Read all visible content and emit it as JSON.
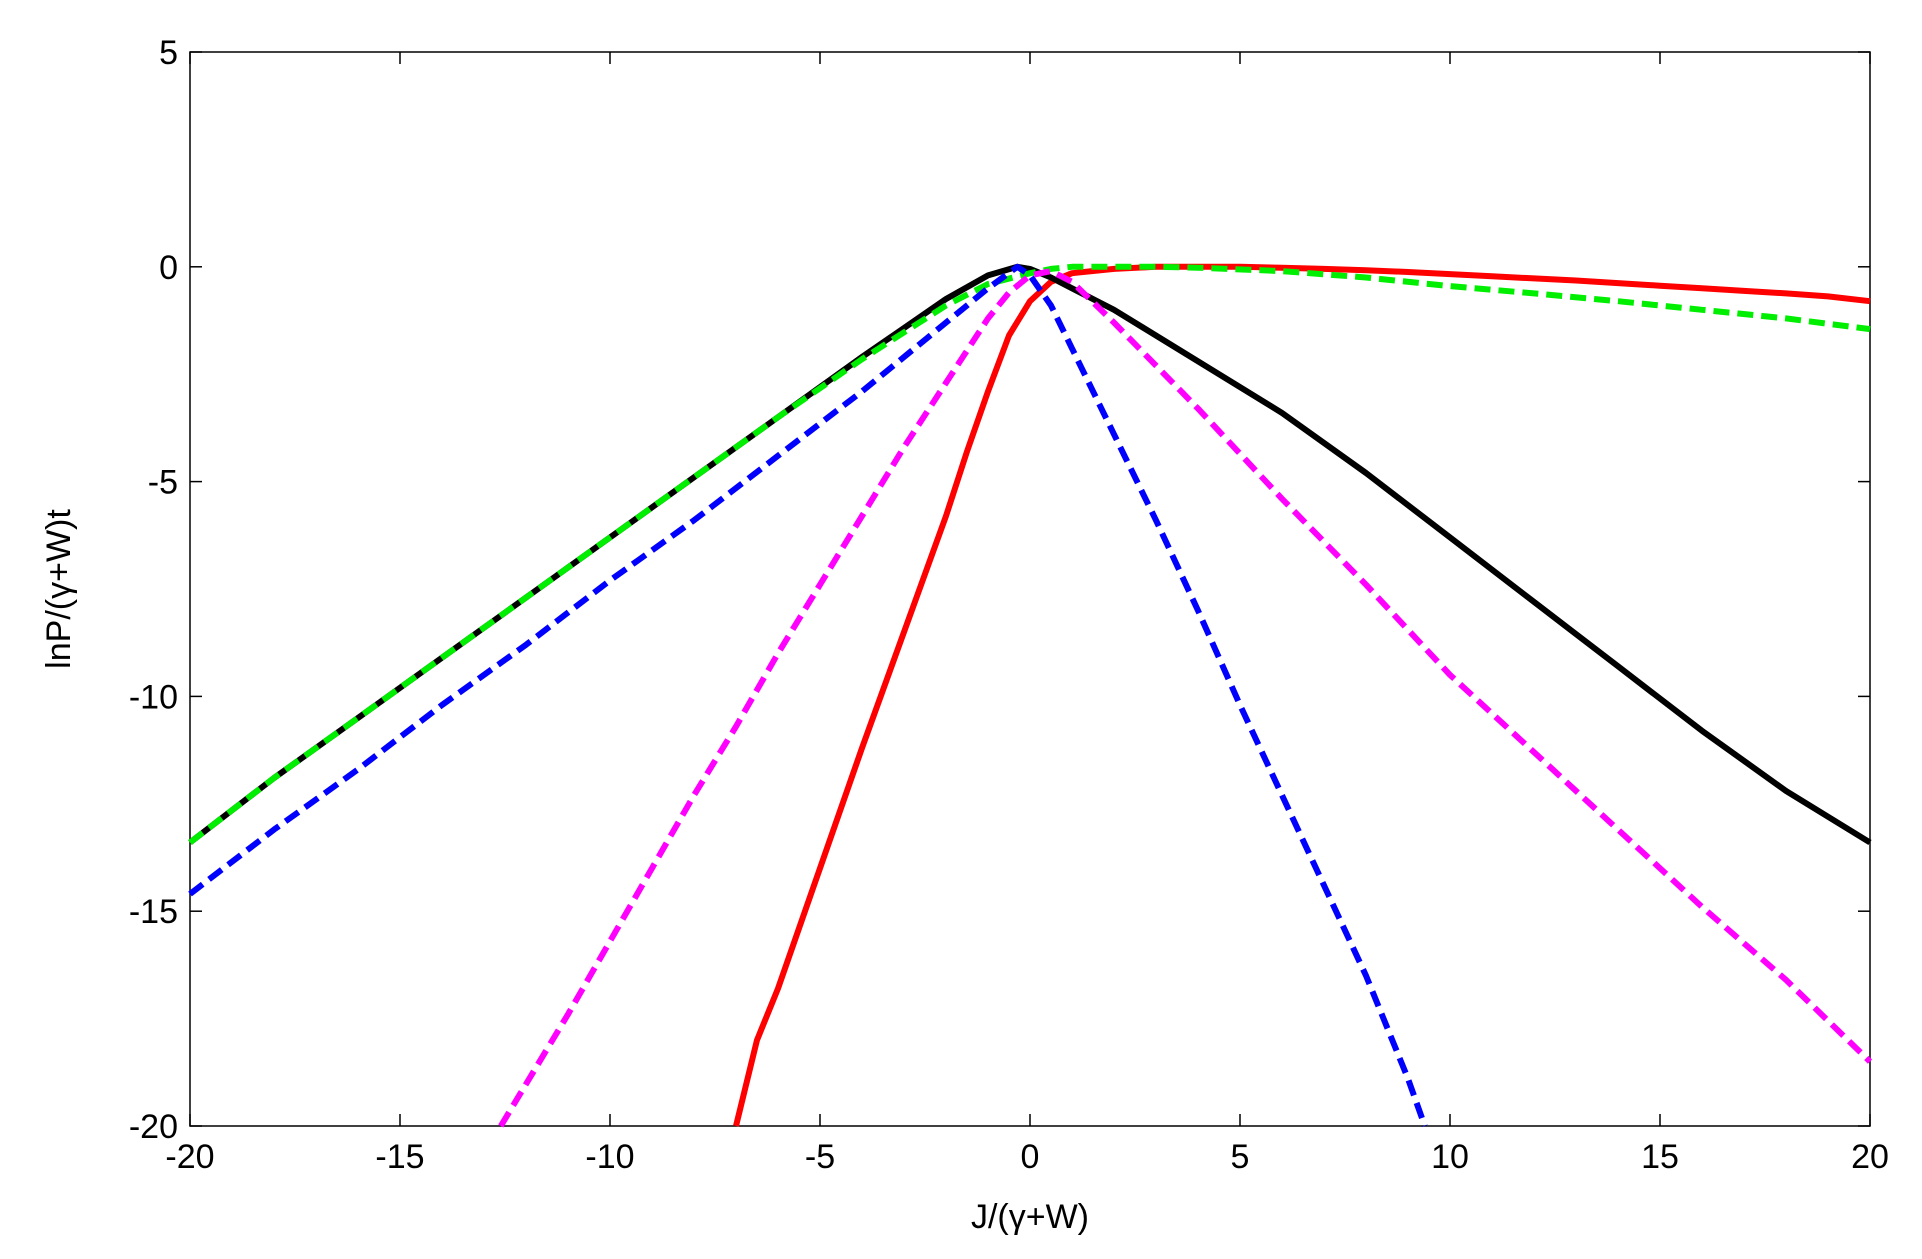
{
  "chart_data": {
    "type": "line",
    "xlabel": "J/(γ+W)",
    "ylabel": "lnP/(γ+W)t",
    "xlim": [
      -20,
      20
    ],
    "ylim": [
      -20,
      5
    ],
    "xticks": [
      -20,
      -15,
      -10,
      -5,
      0,
      5,
      10,
      15,
      20
    ],
    "yticks": [
      5,
      0,
      -5,
      -10,
      -15,
      -20
    ],
    "grid": false,
    "legend": "none",
    "series": [
      {
        "color": "#ff0000",
        "style": "solid",
        "x": [
          -7.0,
          -6.5,
          -6,
          -5,
          -4,
          -3,
          -2,
          -1.5,
          -1,
          -0.5,
          0,
          0.5,
          1,
          2,
          3,
          4,
          5,
          6,
          7,
          8,
          9,
          10,
          11,
          12,
          13,
          14,
          15,
          16,
          17,
          18,
          19,
          20
        ],
        "y": [
          -20,
          -18.0,
          -16.8,
          -14.0,
          -11.2,
          -8.5,
          -5.8,
          -4.3,
          -2.9,
          -1.6,
          -0.8,
          -0.35,
          -0.15,
          -0.05,
          0,
          0,
          0,
          -0.02,
          -0.05,
          -0.08,
          -0.12,
          -0.17,
          -0.22,
          -0.27,
          -0.32,
          -0.38,
          -0.44,
          -0.5,
          -0.56,
          -0.62,
          -0.69,
          -0.8
        ]
      },
      {
        "color": "#000000",
        "style": "solid",
        "x": [
          -20,
          -18,
          -16,
          -14,
          -12,
          -10,
          -8,
          -6,
          -4,
          -2,
          -1,
          -0.3,
          0,
          0.5,
          1,
          2,
          4,
          6,
          8,
          10,
          12,
          14,
          16,
          18,
          20
        ],
        "y": [
          -13.4,
          -11.9,
          -10.5,
          -9.1,
          -7.7,
          -6.3,
          -4.9,
          -3.5,
          -2.1,
          -0.75,
          -0.2,
          0,
          -0.05,
          -0.25,
          -0.5,
          -1.0,
          -2.2,
          -3.4,
          -4.8,
          -6.3,
          -7.8,
          -9.3,
          -10.8,
          -12.2,
          -13.4
        ]
      },
      {
        "color": "#00ee00",
        "style": "dashed",
        "x": [
          -20,
          -18,
          -16,
          -14,
          -12,
          -10,
          -8,
          -6,
          -4,
          -2,
          -1,
          0,
          0.5,
          1,
          2,
          3,
          4,
          6,
          8,
          10,
          12,
          14,
          16,
          18,
          20
        ],
        "y": [
          -13.4,
          -11.9,
          -10.5,
          -9.1,
          -7.7,
          -6.3,
          -4.9,
          -3.5,
          -2.15,
          -0.9,
          -0.4,
          -0.15,
          -0.05,
          0,
          0,
          0,
          -0.02,
          -0.1,
          -0.25,
          -0.45,
          -0.62,
          -0.8,
          -1.0,
          -1.2,
          -1.45
        ]
      },
      {
        "color": "#0000ff",
        "style": "dashed",
        "x": [
          -20,
          -18,
          -16,
          -14,
          -12,
          -10,
          -8,
          -6,
          -4,
          -2,
          -1,
          -0.3,
          0,
          0.5,
          1,
          2,
          3,
          4,
          5,
          6,
          7,
          8,
          9,
          9.4
        ],
        "y": [
          -14.6,
          -13.1,
          -11.7,
          -10.2,
          -8.8,
          -7.3,
          -5.9,
          -4.4,
          -2.9,
          -1.3,
          -0.5,
          0,
          -0.2,
          -0.9,
          -1.9,
          -3.9,
          -5.9,
          -8.0,
          -10.2,
          -12.3,
          -14.4,
          -16.5,
          -18.9,
          -20
        ]
      },
      {
        "color": "#ff00ff",
        "style": "dashed",
        "x": [
          -12.6,
          -11,
          -10,
          -9,
          -8,
          -7,
          -6,
          -5,
          -4,
          -3,
          -2,
          -1,
          -0.5,
          0,
          0.5,
          1,
          2,
          4,
          6,
          8,
          10,
          12,
          14,
          16,
          18,
          20
        ],
        "y": [
          -20,
          -17.4,
          -15.7,
          -14.0,
          -12.3,
          -10.7,
          -9.0,
          -7.4,
          -5.8,
          -4.2,
          -2.7,
          -1.2,
          -0.6,
          -0.2,
          -0.1,
          -0.35,
          -1.3,
          -3.3,
          -5.4,
          -7.4,
          -9.5,
          -11.3,
          -13.1,
          -14.9,
          -16.6,
          -18.5
        ]
      }
    ]
  }
}
